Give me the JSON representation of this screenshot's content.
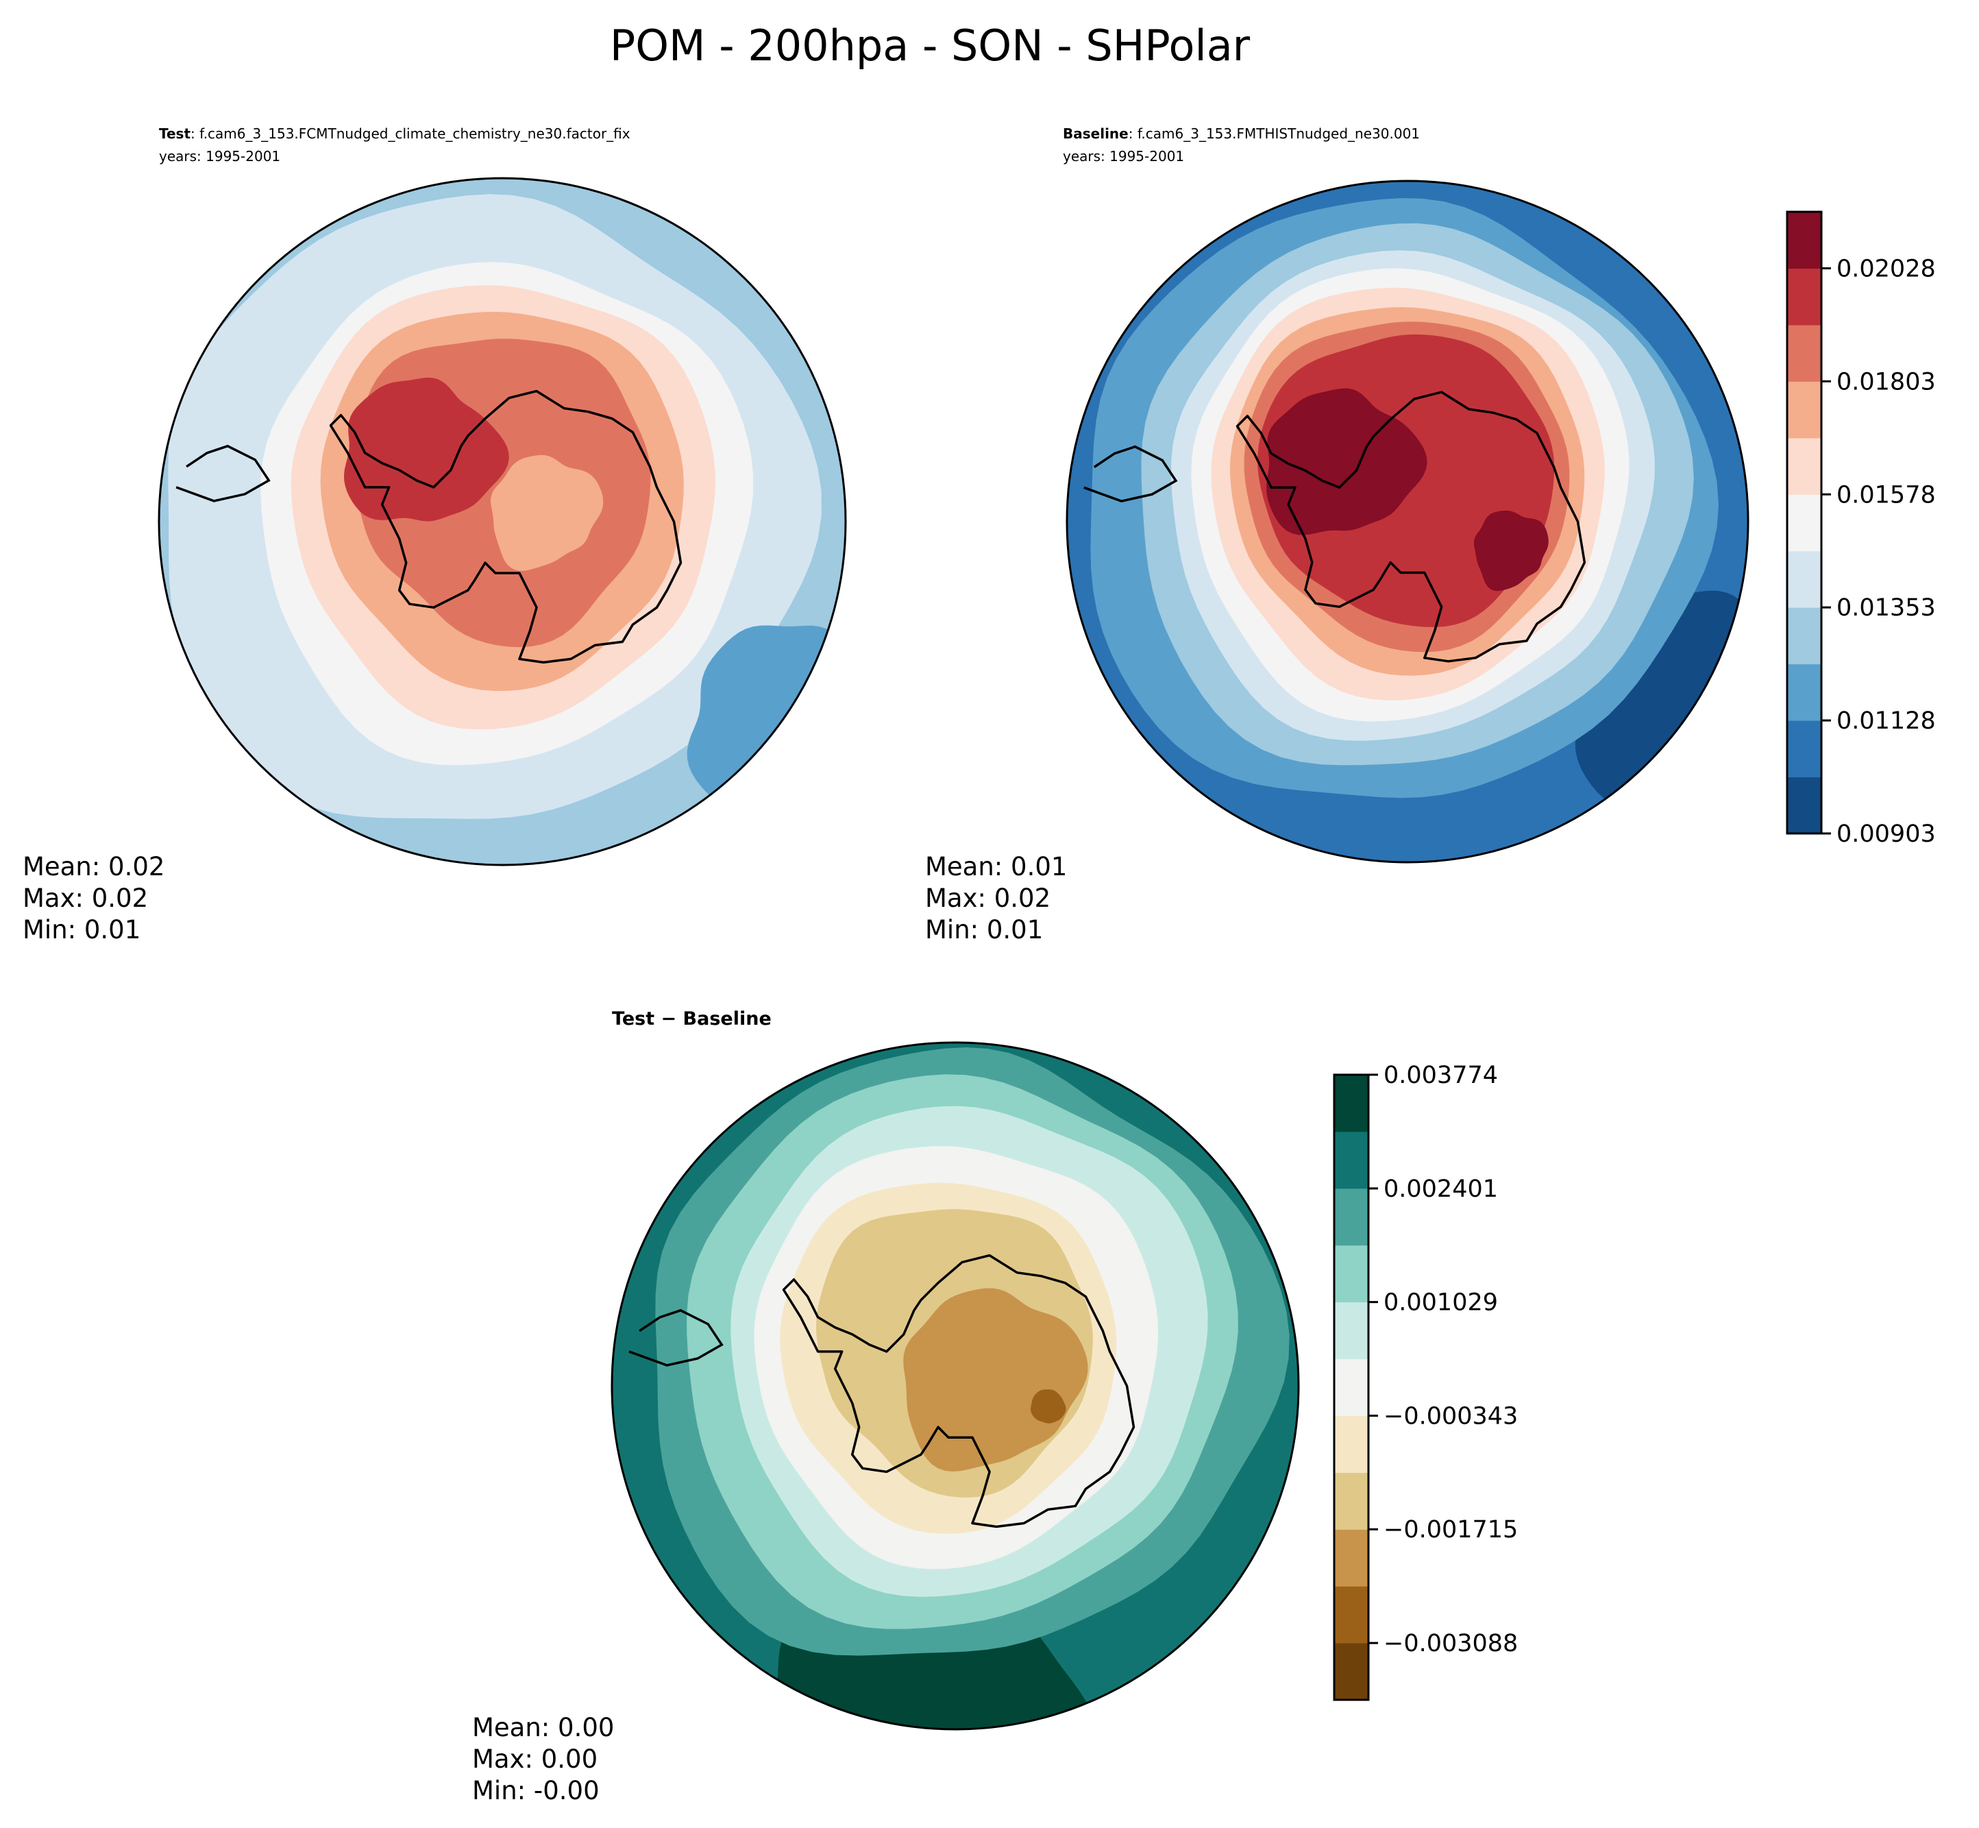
{
  "title": "POM - 200hpa - SON - SHPolar",
  "chart_data": [
    {
      "type": "heatmap",
      "projection": "south-polar-stereographic",
      "panel": "test",
      "title_bold": "Test",
      "title_rest": ": f.cam6_3_153.FCMTnudged_climate_chemistry_ne30.factor_fix",
      "years": "years: 1995-2001",
      "stats": {
        "mean": "Mean:  0.02",
        "max": "Max:  0.02",
        "min": "Min:  0.01"
      },
      "colormap": "RdBu_r",
      "shared_colorbar": true
    },
    {
      "type": "heatmap",
      "projection": "south-polar-stereographic",
      "panel": "baseline",
      "title_bold": "Baseline",
      "title_rest": ": f.cam6_3_153.FMTHISTnudged_ne30.001",
      "years": "years: 1995-2001",
      "stats": {
        "mean": "Mean:  0.01",
        "max": "Max:  0.02",
        "min": "Min:  0.01"
      },
      "colormap": "RdBu_r",
      "colorbar": {
        "ticks": [
          "0.02028",
          "0.01803",
          "0.01578",
          "0.01353",
          "0.01128",
          "0.00903"
        ],
        "tick_values": [
          0.02028,
          0.01803,
          0.01578,
          0.01353,
          0.01128,
          0.00903
        ],
        "range": [
          0.00903,
          0.021405
        ],
        "colors": [
          "#134b84",
          "#2b73b3",
          "#5aa0cc",
          "#9fcae0",
          "#d4e5f0",
          "#f4f4f4",
          "#fcdccf",
          "#f4ae8c",
          "#df7560",
          "#c0323a",
          "#860e26"
        ]
      }
    },
    {
      "type": "heatmap",
      "projection": "south-polar-stereographic",
      "panel": "difference",
      "title": "Test − Baseline",
      "stats": {
        "mean": "Mean:  0.00",
        "max": "Max:  0.00",
        "min": "Min: -0.00"
      },
      "colormap": "BrBG",
      "colorbar": {
        "ticks": [
          "0.003774",
          "0.002401",
          "0.001029",
          "−0.000343",
          "−0.001715",
          "−0.003088"
        ],
        "tick_values": [
          0.003774,
          0.002401,
          0.001029,
          -0.000343,
          -0.001715,
          -0.003088
        ],
        "range": [
          -0.003774,
          0.003774
        ],
        "colors": [
          "#6f410a",
          "#9b6119",
          "#c8934a",
          "#e0c889",
          "#f5e7c6",
          "#f3f3f1",
          "#c9eae4",
          "#8fd3c6",
          "#4aa39a",
          "#127470",
          "#014636"
        ]
      }
    }
  ]
}
